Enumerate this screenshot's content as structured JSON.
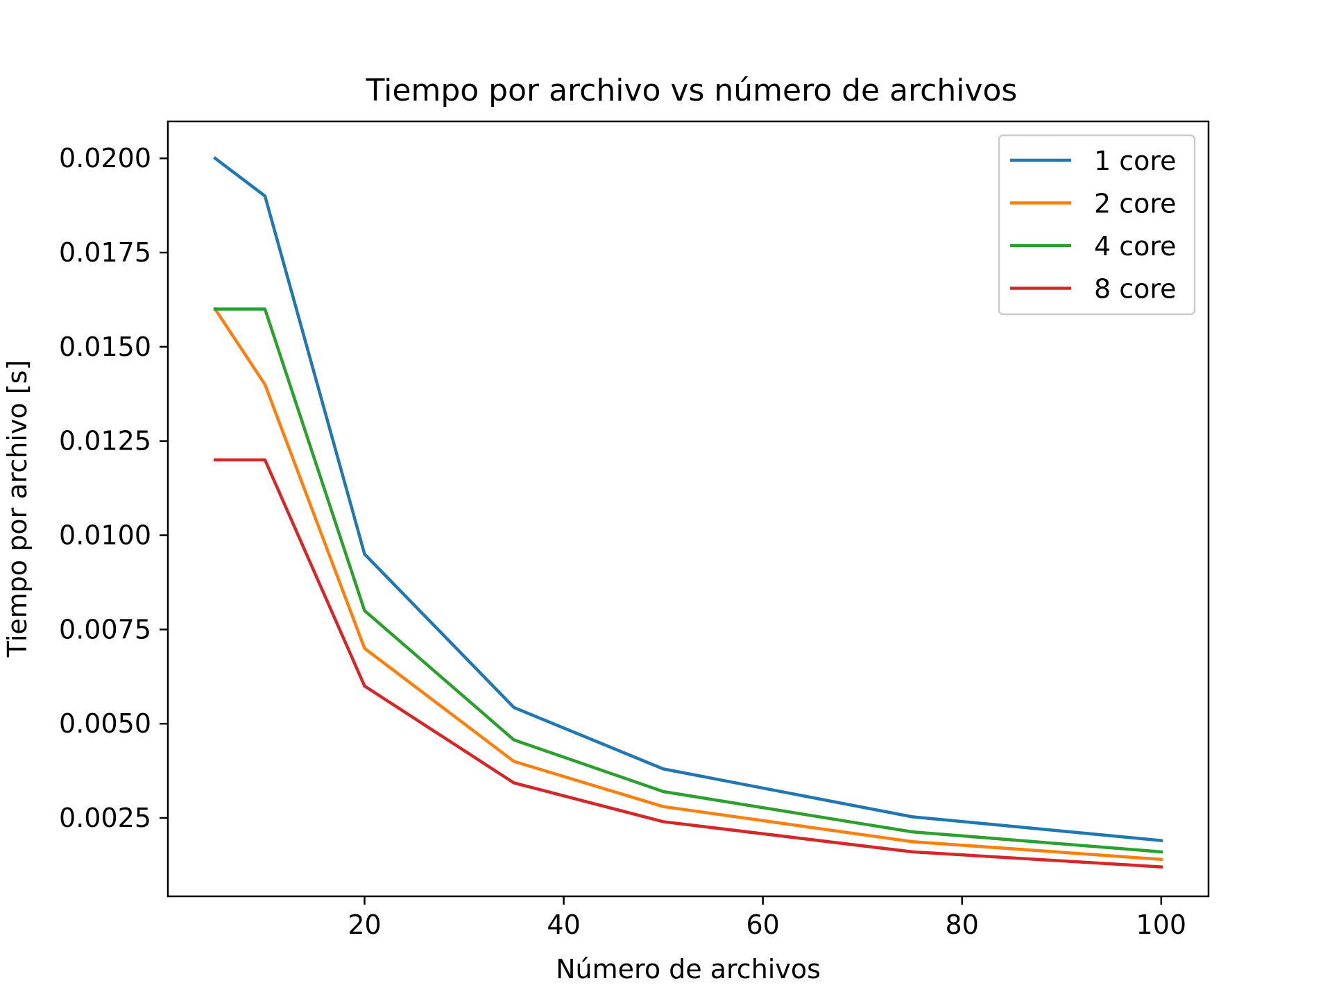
{
  "chart_data": {
    "type": "line",
    "title": "Tiempo por archivo vs número de archivos",
    "xlabel": "Número de archivos",
    "ylabel": "Tiempo por archivo [s]",
    "xlim": [
      0.25,
      104.75
    ],
    "ylim": [
      0.00042,
      0.02098
    ],
    "xticks": [
      20,
      40,
      60,
      80,
      100
    ],
    "xtick_labels": [
      "20",
      "40",
      "60",
      "80",
      "100"
    ],
    "yticks": [
      0.0025,
      0.005,
      0.0075,
      0.01,
      0.0125,
      0.015,
      0.0175,
      0.02
    ],
    "ytick_labels": [
      "0.0025",
      "0.0050",
      "0.0075",
      "0.0100",
      "0.0125",
      "0.0150",
      "0.0175",
      "0.0200"
    ],
    "grid": false,
    "legend_position": "top-right",
    "x": [
      5,
      10,
      20,
      35,
      50,
      75,
      100
    ],
    "series": [
      {
        "name": "1 core",
        "color": "#1f77b4",
        "values": [
          0.02,
          0.019,
          0.0095,
          0.00543,
          0.0038,
          0.00253,
          0.0019
        ]
      },
      {
        "name": "2 core",
        "color": "#ff7f0e",
        "values": [
          0.016,
          0.014,
          0.007,
          0.004,
          0.0028,
          0.00187,
          0.0014
        ]
      },
      {
        "name": "4 core",
        "color": "#2ca02c",
        "values": [
          0.016,
          0.016,
          0.008,
          0.00457,
          0.0032,
          0.00213,
          0.0016
        ]
      },
      {
        "name": "8 core",
        "color": "#d62728",
        "values": [
          0.012,
          0.012,
          0.006,
          0.00343,
          0.0024,
          0.0016,
          0.0012
        ]
      }
    ]
  }
}
